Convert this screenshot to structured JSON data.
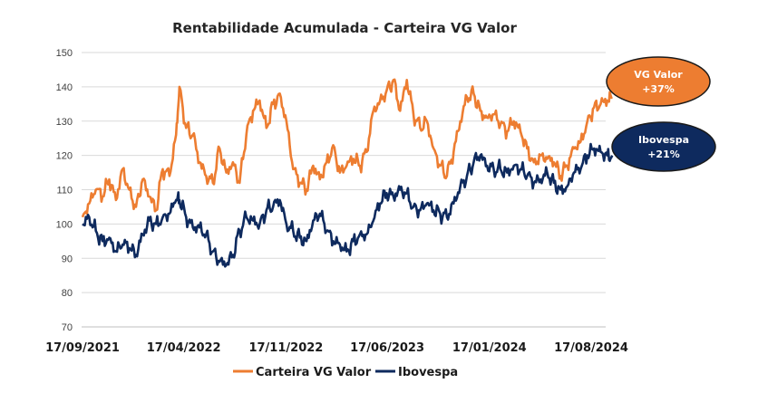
{
  "chart_data": {
    "type": "line",
    "title": "Rentabilidade Acumulada - Carteira VG Valor",
    "xlabel": "",
    "ylabel": "",
    "ylim": [
      70,
      150
    ],
    "yticks": [
      70,
      80,
      90,
      100,
      110,
      120,
      130,
      140,
      150
    ],
    "xticks": [
      "17/09/2021",
      "17/04/2022",
      "17/11/2022",
      "17/06/2023",
      "17/01/2024",
      "17/08/2024"
    ],
    "x_range": [
      "2021-09-17",
      "2024-09-30"
    ],
    "grid": "horizontal",
    "legend": "bottom",
    "series": [
      {
        "name": "Carteira VG Valor",
        "color": "#ED7D31",
        "points": [
          [
            "2021-09-17",
            102
          ],
          [
            "2021-10-01",
            106
          ],
          [
            "2021-10-15",
            110
          ],
          [
            "2021-10-29",
            108
          ],
          [
            "2021-11-12",
            113
          ],
          [
            "2021-11-26",
            107
          ],
          [
            "2021-12-10",
            116
          ],
          [
            "2021-12-24",
            110
          ],
          [
            "2022-01-07",
            105
          ],
          [
            "2022-01-21",
            113
          ],
          [
            "2022-02-04",
            108
          ],
          [
            "2022-02-18",
            104
          ],
          [
            "2022-03-04",
            116
          ],
          [
            "2022-03-18",
            114
          ],
          [
            "2022-04-01",
            126
          ],
          [
            "2022-04-08",
            140
          ],
          [
            "2022-04-22",
            128
          ],
          [
            "2022-05-06",
            126
          ],
          [
            "2022-05-20",
            118
          ],
          [
            "2022-06-03",
            114
          ],
          [
            "2022-06-17",
            112
          ],
          [
            "2022-07-01",
            122
          ],
          [
            "2022-07-15",
            115
          ],
          [
            "2022-07-29",
            118
          ],
          [
            "2022-08-12",
            112
          ],
          [
            "2022-08-26",
            126
          ],
          [
            "2022-09-09",
            133
          ],
          [
            "2022-09-23",
            136
          ],
          [
            "2022-10-07",
            128
          ],
          [
            "2022-10-21",
            135
          ],
          [
            "2022-11-04",
            138
          ],
          [
            "2022-11-18",
            130
          ],
          [
            "2022-12-02",
            116
          ],
          [
            "2022-12-16",
            112
          ],
          [
            "2022-12-30",
            110
          ],
          [
            "2023-01-13",
            117
          ],
          [
            "2023-01-27",
            113
          ],
          [
            "2023-02-10",
            118
          ],
          [
            "2023-02-24",
            123
          ],
          [
            "2023-03-10",
            115
          ],
          [
            "2023-03-24",
            117
          ],
          [
            "2023-04-07",
            119
          ],
          [
            "2023-04-21",
            117
          ],
          [
            "2023-05-05",
            121
          ],
          [
            "2023-05-19",
            133
          ],
          [
            "2023-06-02",
            136
          ],
          [
            "2023-06-16",
            139
          ],
          [
            "2023-06-30",
            142
          ],
          [
            "2023-07-14",
            133
          ],
          [
            "2023-07-28",
            142
          ],
          [
            "2023-08-11",
            132
          ],
          [
            "2023-08-25",
            128
          ],
          [
            "2023-09-08",
            130
          ],
          [
            "2023-09-22",
            122
          ],
          [
            "2023-10-06",
            117
          ],
          [
            "2023-10-20",
            114
          ],
          [
            "2023-11-03",
            121
          ],
          [
            "2023-11-17",
            130
          ],
          [
            "2023-12-01",
            137
          ],
          [
            "2023-12-15",
            138
          ],
          [
            "2023-12-29",
            133
          ],
          [
            "2024-01-12",
            131
          ],
          [
            "2024-01-26",
            132
          ],
          [
            "2024-02-09",
            129
          ],
          [
            "2024-02-23",
            127
          ],
          [
            "2024-03-08",
            130
          ],
          [
            "2024-03-22",
            127
          ],
          [
            "2024-04-05",
            122
          ],
          [
            "2024-04-19",
            118
          ],
          [
            "2024-05-03",
            120
          ],
          [
            "2024-05-17",
            119
          ],
          [
            "2024-05-31",
            118
          ],
          [
            "2024-06-14",
            114
          ],
          [
            "2024-06-28",
            117
          ],
          [
            "2024-07-12",
            122
          ],
          [
            "2024-07-26",
            124
          ],
          [
            "2024-08-09",
            130
          ],
          [
            "2024-08-23",
            134
          ],
          [
            "2024-09-06",
            135
          ],
          [
            "2024-09-20",
            136
          ],
          [
            "2024-09-30",
            137
          ]
        ]
      },
      {
        "name": "Ibovespa",
        "color": "#0E2A5E",
        "points": [
          [
            "2021-09-17",
            100
          ],
          [
            "2021-10-01",
            102
          ],
          [
            "2021-10-15",
            98
          ],
          [
            "2021-10-29",
            95
          ],
          [
            "2021-11-12",
            96
          ],
          [
            "2021-11-26",
            92
          ],
          [
            "2021-12-10",
            94
          ],
          [
            "2021-12-24",
            93
          ],
          [
            "2022-01-07",
            91
          ],
          [
            "2022-01-21",
            97
          ],
          [
            "2022-02-04",
            101
          ],
          [
            "2022-02-18",
            100
          ],
          [
            "2022-03-04",
            102
          ],
          [
            "2022-03-18",
            103
          ],
          [
            "2022-04-01",
            107
          ],
          [
            "2022-04-08",
            107
          ],
          [
            "2022-04-22",
            102
          ],
          [
            "2022-05-06",
            99
          ],
          [
            "2022-05-20",
            99
          ],
          [
            "2022-06-03",
            97
          ],
          [
            "2022-06-17",
            92
          ],
          [
            "2022-07-01",
            89
          ],
          [
            "2022-07-15",
            88
          ],
          [
            "2022-07-29",
            91
          ],
          [
            "2022-08-12",
            98
          ],
          [
            "2022-08-26",
            102
          ],
          [
            "2022-09-09",
            101
          ],
          [
            "2022-09-23",
            100
          ],
          [
            "2022-10-07",
            104
          ],
          [
            "2022-10-21",
            105
          ],
          [
            "2022-11-04",
            107
          ],
          [
            "2022-11-18",
            100
          ],
          [
            "2022-12-02",
            98
          ],
          [
            "2022-12-16",
            96
          ],
          [
            "2022-12-30",
            95
          ],
          [
            "2023-01-13",
            101
          ],
          [
            "2023-01-27",
            103
          ],
          [
            "2023-02-10",
            98
          ],
          [
            "2023-02-24",
            95
          ],
          [
            "2023-03-10",
            94
          ],
          [
            "2023-03-24",
            92
          ],
          [
            "2023-04-07",
            95
          ],
          [
            "2023-04-21",
            97
          ],
          [
            "2023-05-05",
            97
          ],
          [
            "2023-05-19",
            101
          ],
          [
            "2023-06-02",
            106
          ],
          [
            "2023-06-16",
            109
          ],
          [
            "2023-06-30",
            108
          ],
          [
            "2023-07-14",
            110
          ],
          [
            "2023-07-28",
            109
          ],
          [
            "2023-08-11",
            105
          ],
          [
            "2023-08-25",
            104
          ],
          [
            "2023-09-08",
            106
          ],
          [
            "2023-09-22",
            104
          ],
          [
            "2023-10-06",
            103
          ],
          [
            "2023-10-20",
            102
          ],
          [
            "2023-11-03",
            106
          ],
          [
            "2023-11-17",
            111
          ],
          [
            "2023-12-01",
            114
          ],
          [
            "2023-12-15",
            118
          ],
          [
            "2023-12-29",
            120
          ],
          [
            "2024-01-12",
            117
          ],
          [
            "2024-01-26",
            116
          ],
          [
            "2024-02-09",
            116
          ],
          [
            "2024-02-23",
            115
          ],
          [
            "2024-03-08",
            117
          ],
          [
            "2024-03-22",
            116
          ],
          [
            "2024-04-05",
            114
          ],
          [
            "2024-04-19",
            112
          ],
          [
            "2024-05-03",
            113
          ],
          [
            "2024-05-17",
            115
          ],
          [
            "2024-05-31",
            112
          ],
          [
            "2024-06-14",
            110
          ],
          [
            "2024-06-28",
            111
          ],
          [
            "2024-07-12",
            115
          ],
          [
            "2024-07-26",
            116
          ],
          [
            "2024-08-09",
            120
          ],
          [
            "2024-08-23",
            122
          ],
          [
            "2024-09-06",
            121
          ],
          [
            "2024-09-20",
            120
          ],
          [
            "2024-09-30",
            120
          ]
        ]
      }
    ],
    "annotations": [
      {
        "series": "Carteira VG Valor",
        "line1": "VG Valor",
        "line2": "+37%",
        "fill": "#ED7D31"
      },
      {
        "series": "Ibovespa",
        "line1": "Ibovespa",
        "line2": "+21%",
        "fill": "#0E2A5E"
      }
    ]
  }
}
